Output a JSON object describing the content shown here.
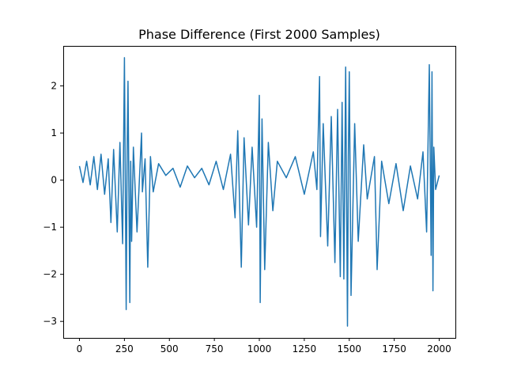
{
  "chart_data": {
    "type": "line",
    "title": "Phase Difference (First 2000 Samples)",
    "xlabel": "",
    "ylabel": "",
    "xlim": [
      -90,
      2090
    ],
    "ylim": [
      -3.35,
      2.85
    ],
    "x_ticks": [
      0,
      250,
      500,
      750,
      1000,
      1250,
      1500,
      1750,
      2000
    ],
    "x_tick_labels": [
      "0",
      "250",
      "500",
      "750",
      "1000",
      "1250",
      "1500",
      "1750",
      "2000"
    ],
    "y_ticks": [
      -3,
      -2,
      -1,
      0,
      1,
      2
    ],
    "y_tick_labels": [
      "−3",
      "−2",
      "−1",
      "0",
      "1",
      "2"
    ],
    "grid": false,
    "legend": "none",
    "series": [
      {
        "color": "#1f77b4",
        "x": [
          0,
          20,
          40,
          60,
          80,
          100,
          120,
          140,
          160,
          175,
          190,
          210,
          225,
          240,
          250,
          260,
          265,
          270,
          280,
          285,
          290,
          300,
          320,
          345,
          350,
          365,
          380,
          395,
          410,
          440,
          480,
          520,
          560,
          600,
          640,
          680,
          720,
          760,
          800,
          840,
          865,
          880,
          900,
          915,
          940,
          960,
          985,
          1000,
          1005,
          1015,
          1030,
          1050,
          1075,
          1100,
          1150,
          1200,
          1250,
          1300,
          1320,
          1335,
          1340,
          1355,
          1380,
          1400,
          1420,
          1435,
          1450,
          1460,
          1470,
          1480,
          1490,
          1495,
          1500,
          1510,
          1530,
          1550,
          1580,
          1600,
          1640,
          1655,
          1680,
          1720,
          1760,
          1800,
          1840,
          1880,
          1910,
          1930,
          1945,
          1955,
          1960,
          1965,
          1970,
          1980,
          2000
        ],
        "y": [
          0.3,
          -0.05,
          0.4,
          -0.1,
          0.5,
          -0.2,
          0.55,
          -0.3,
          0.45,
          -0.9,
          0.65,
          -1.1,
          0.8,
          -1.35,
          2.6,
          -2.75,
          0.6,
          2.1,
          -2.6,
          0.4,
          -1.3,
          0.7,
          -1.1,
          1.0,
          -0.25,
          0.45,
          -1.85,
          0.5,
          -0.25,
          0.35,
          0.1,
          0.25,
          -0.15,
          0.3,
          0.05,
          0.25,
          -0.1,
          0.4,
          -0.2,
          0.55,
          -0.8,
          1.05,
          -1.85,
          0.9,
          -0.95,
          0.7,
          -1.0,
          1.8,
          -2.6,
          1.3,
          -1.9,
          0.8,
          -0.65,
          0.4,
          0.05,
          0.5,
          -0.3,
          0.6,
          -0.2,
          2.2,
          -1.2,
          1.2,
          -1.4,
          1.35,
          -1.75,
          1.5,
          -2.05,
          1.65,
          -2.1,
          2.4,
          -3.1,
          0.5,
          2.3,
          -2.45,
          1.2,
          -1.3,
          0.75,
          -0.4,
          0.5,
          -1.9,
          0.4,
          -0.5,
          0.35,
          -0.65,
          0.3,
          -0.4,
          0.6,
          -1.1,
          2.45,
          -1.6,
          2.3,
          -2.35,
          0.7,
          -0.2,
          0.1
        ]
      }
    ]
  }
}
